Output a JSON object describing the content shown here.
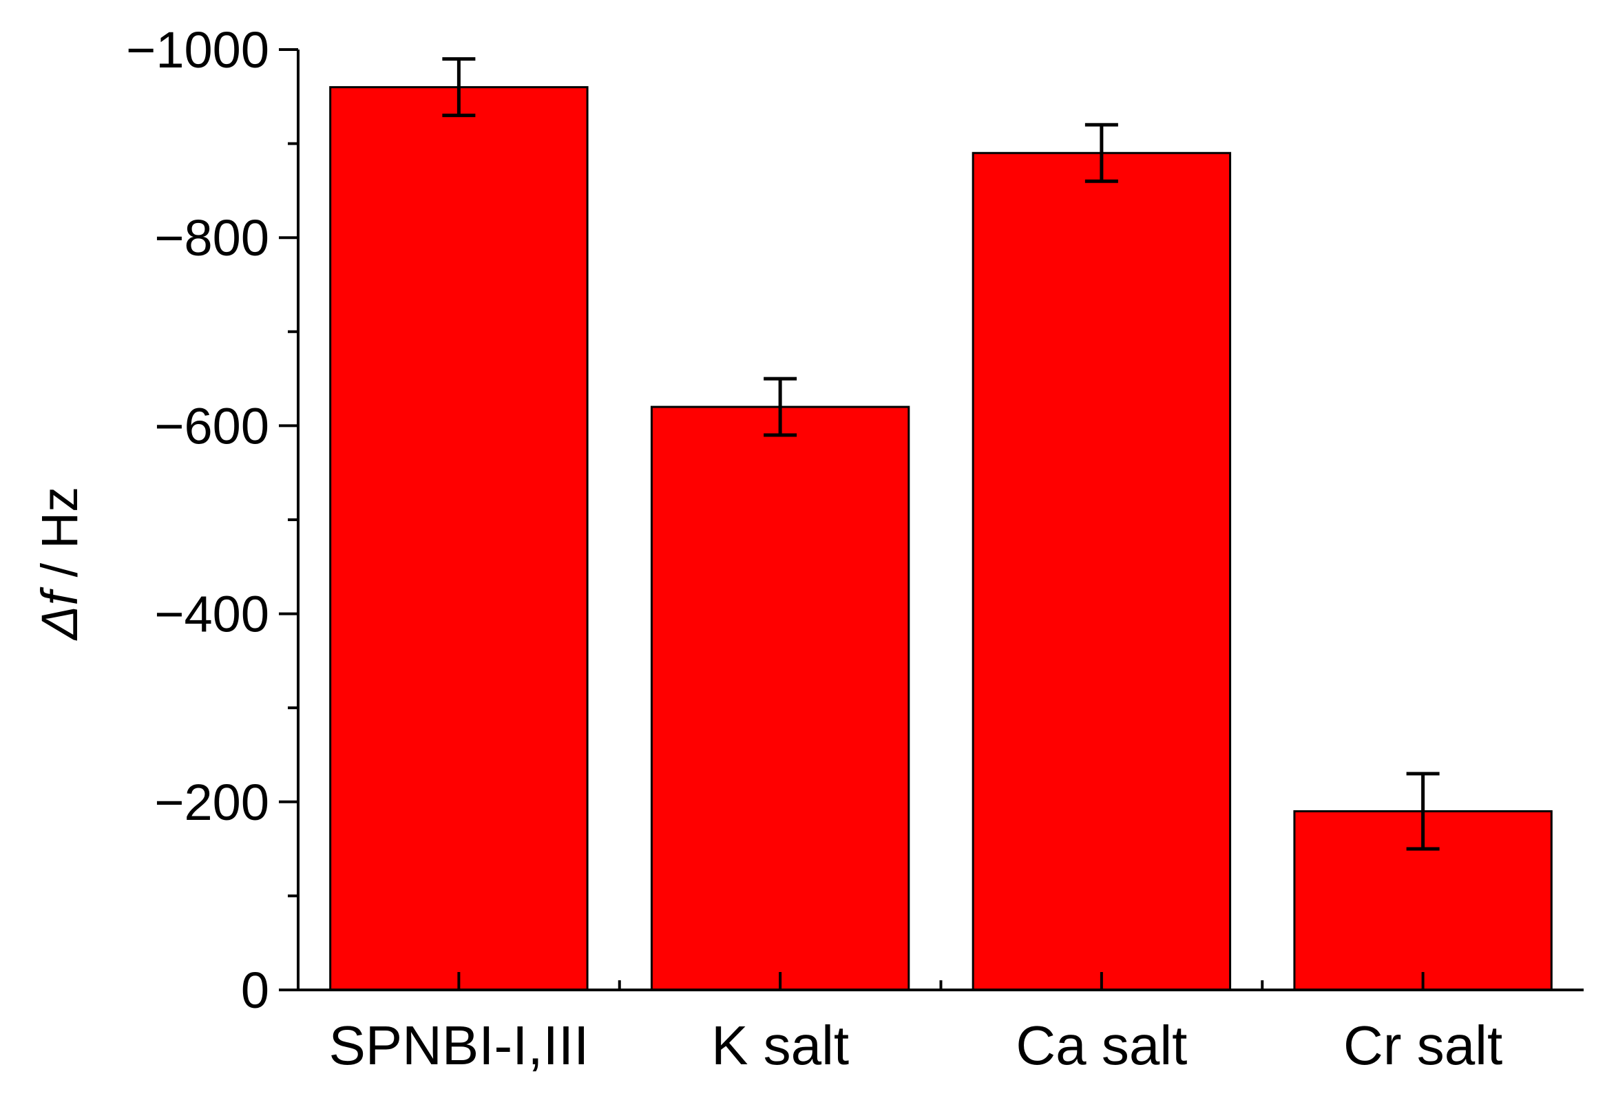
{
  "chart_data": {
    "type": "bar",
    "categories": [
      "SPNBI-I,III",
      "K salt",
      "Ca salt",
      "Cr salt"
    ],
    "values": [
      -960,
      -620,
      -890,
      -190
    ],
    "error": [
      30,
      30,
      30,
      40
    ],
    "ylabel_symbol": "Δf",
    "ylabel_unit": " / Hz",
    "ylim": [
      0,
      -1000
    ],
    "yticks": [
      0,
      -200,
      -400,
      -600,
      -800,
      -1000
    ],
    "ytick_labels": [
      "0",
      "−200",
      "−400",
      "−600",
      "−800",
      "−1000"
    ],
    "grid": false,
    "bar_color": "#ff0000",
    "error_color": "#000000"
  }
}
